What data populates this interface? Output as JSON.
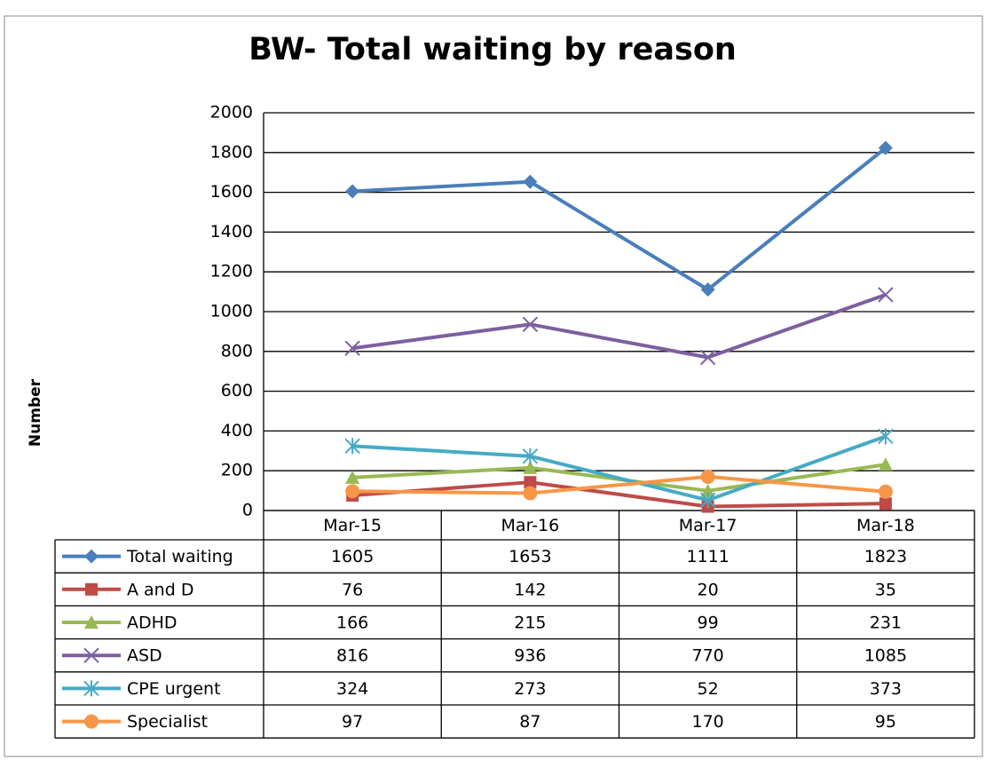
{
  "chart_data": {
    "type": "line",
    "title": "BW- Total waiting by reason",
    "y_label": "Number",
    "categories": [
      "Mar-15",
      "Mar-16",
      "Mar-17",
      "Mar-18"
    ],
    "series": [
      {
        "name": "Total waiting",
        "color": "#4a7ebb",
        "marker": "diamond",
        "values": [
          1605,
          1653,
          1111,
          1823
        ]
      },
      {
        "name": "A and D",
        "color": "#be4b48",
        "marker": "square",
        "values": [
          76,
          142,
          20,
          35
        ]
      },
      {
        "name": "ADHD",
        "color": "#98b954",
        "marker": "triangle",
        "values": [
          166,
          215,
          99,
          231
        ]
      },
      {
        "name": "ASD",
        "color": "#7d5fa0",
        "marker": "x",
        "values": [
          816,
          936,
          770,
          1085
        ]
      },
      {
        "name": "CPE urgent",
        "color": "#46aac5",
        "marker": "star",
        "values": [
          324,
          273,
          52,
          373
        ]
      },
      {
        "name": "Specialist",
        "color": "#f79646",
        "marker": "circle",
        "values": [
          97,
          87,
          170,
          95
        ]
      }
    ],
    "ylim": [
      0,
      2000
    ],
    "yticks": [
      0,
      200,
      400,
      600,
      800,
      1000,
      1200,
      1400,
      1600,
      1800,
      2000
    ],
    "grid": true
  }
}
